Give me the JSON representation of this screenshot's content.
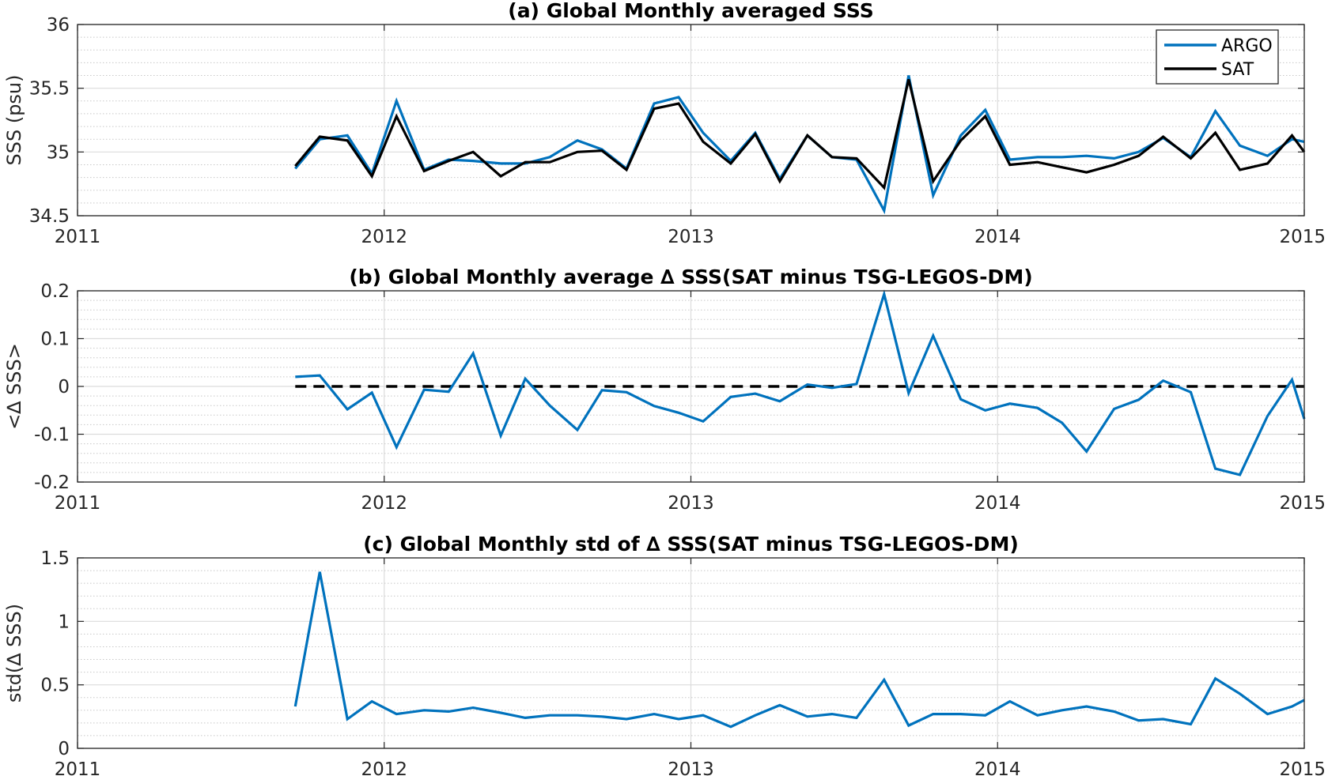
{
  "chart_data": [
    {
      "type": "line",
      "title": "(a) Global Monthly averaged SSS",
      "xlabel": "",
      "ylabel": "SSS (psu)",
      "xlim": [
        2011,
        2015
      ],
      "ylim": [
        34.5,
        36
      ],
      "xticks": [
        "2011",
        "2012",
        "2013",
        "2014",
        "2015"
      ],
      "yticks": [
        "34.5",
        "35",
        "35.5",
        "36"
      ],
      "grid": true,
      "legend": "top-right",
      "series": [
        {
          "name": "ARGO",
          "color": "#0072BD",
          "x": [
            2011.71,
            2011.79,
            2011.88,
            2011.96,
            2012.04,
            2012.13,
            2012.21,
            2012.29,
            2012.38,
            2012.46,
            2012.54,
            2012.63,
            2012.71,
            2012.79,
            2012.88,
            2012.96,
            2013.04,
            2013.13,
            2013.21,
            2013.29,
            2013.38,
            2013.46,
            2013.54,
            2013.63,
            2013.71,
            2013.79,
            2013.88,
            2013.96,
            2014.04,
            2014.13,
            2014.21,
            2014.29,
            2014.38,
            2014.46,
            2014.54,
            2014.63,
            2014.71,
            2014.79,
            2014.88,
            2014.96,
            2015.0
          ],
          "values": [
            34.87,
            35.1,
            35.13,
            34.83,
            35.4,
            34.86,
            34.94,
            34.93,
            34.91,
            34.91,
            34.96,
            35.09,
            35.02,
            34.87,
            35.38,
            35.43,
            35.15,
            34.93,
            35.15,
            34.79,
            35.13,
            34.96,
            34.94,
            34.54,
            35.6,
            34.66,
            35.13,
            35.33,
            34.94,
            34.96,
            34.96,
            34.97,
            34.95,
            35.0,
            35.11,
            34.96,
            35.32,
            35.05,
            34.97,
            35.1,
            35.08
          ]
        },
        {
          "name": "SAT",
          "color": "#000000",
          "x": [
            2011.71,
            2011.79,
            2011.88,
            2011.96,
            2012.04,
            2012.13,
            2012.21,
            2012.29,
            2012.38,
            2012.46,
            2012.54,
            2012.63,
            2012.71,
            2012.79,
            2012.88,
            2012.96,
            2013.04,
            2013.13,
            2013.21,
            2013.29,
            2013.38,
            2013.46,
            2013.54,
            2013.63,
            2013.71,
            2013.79,
            2013.88,
            2013.96,
            2014.04,
            2014.13,
            2014.21,
            2014.29,
            2014.38,
            2014.46,
            2014.54,
            2014.63,
            2014.71,
            2014.79,
            2014.88,
            2014.96,
            2015.0
          ],
          "values": [
            34.89,
            35.12,
            35.09,
            34.81,
            35.28,
            34.85,
            34.93,
            35.0,
            34.81,
            34.92,
            34.92,
            35.0,
            35.01,
            34.86,
            35.34,
            35.38,
            35.08,
            34.91,
            35.14,
            34.77,
            35.13,
            34.96,
            34.95,
            34.72,
            35.57,
            34.77,
            35.09,
            35.28,
            34.9,
            34.92,
            34.88,
            34.84,
            34.9,
            34.97,
            35.12,
            34.95,
            35.15,
            34.86,
            34.91,
            35.13,
            35.0
          ]
        }
      ]
    },
    {
      "type": "line",
      "title": "(b) Global Monthly average ∆ SSS(SAT minus TSG-LEGOS-DM)",
      "xlabel": "",
      "ylabel": "<∆ SSS>",
      "xlim": [
        2011,
        2015
      ],
      "ylim": [
        -0.2,
        0.2
      ],
      "xticks": [
        "2011",
        "2012",
        "2013",
        "2014",
        "2015"
      ],
      "yticks": [
        "-0.2",
        "-0.1",
        "0",
        "0.1",
        "0.2"
      ],
      "grid": true,
      "reference_line": {
        "y": 0,
        "style": "dashed",
        "color": "#000000"
      },
      "series": [
        {
          "color": "#0072BD",
          "x": [
            2011.71,
            2011.79,
            2011.88,
            2011.96,
            2012.04,
            2012.13,
            2012.21,
            2012.29,
            2012.38,
            2012.46,
            2012.54,
            2012.63,
            2012.71,
            2012.79,
            2012.88,
            2012.96,
            2013.04,
            2013.13,
            2013.21,
            2013.29,
            2013.38,
            2013.46,
            2013.54,
            2013.63,
            2013.71,
            2013.79,
            2013.88,
            2013.96,
            2014.04,
            2014.13,
            2014.21,
            2014.29,
            2014.38,
            2014.46,
            2014.54,
            2014.63,
            2014.71,
            2014.79,
            2014.88,
            2014.96,
            2015.0
          ],
          "values": [
            0.02,
            0.023,
            -0.048,
            -0.013,
            -0.127,
            -0.007,
            -0.011,
            0.069,
            -0.103,
            0.016,
            -0.04,
            -0.091,
            -0.008,
            -0.012,
            -0.041,
            -0.055,
            -0.073,
            -0.022,
            -0.015,
            -0.031,
            0.004,
            -0.003,
            0.005,
            0.193,
            -0.014,
            0.106,
            -0.027,
            -0.05,
            -0.036,
            -0.045,
            -0.076,
            -0.136,
            -0.047,
            -0.028,
            0.012,
            -0.012,
            -0.172,
            -0.185,
            -0.062,
            0.014,
            -0.068
          ]
        }
      ]
    },
    {
      "type": "line",
      "title": "(c) Global Monthly std of ∆ SSS(SAT minus TSG-LEGOS-DM)",
      "xlabel": "",
      "ylabel": "std(∆ SSS)",
      "xlim": [
        2011,
        2015
      ],
      "ylim": [
        0,
        1.5
      ],
      "xticks": [
        "2011",
        "2012",
        "2013",
        "2014",
        "2015"
      ],
      "yticks": [
        "0",
        "0.5",
        "1",
        "1.5"
      ],
      "grid": true,
      "series": [
        {
          "color": "#0072BD",
          "x": [
            2011.71,
            2011.79,
            2011.88,
            2011.96,
            2012.04,
            2012.13,
            2012.21,
            2012.29,
            2012.38,
            2012.46,
            2012.54,
            2012.63,
            2012.71,
            2012.79,
            2012.88,
            2012.96,
            2013.04,
            2013.13,
            2013.21,
            2013.29,
            2013.38,
            2013.46,
            2013.54,
            2013.63,
            2013.71,
            2013.79,
            2013.88,
            2013.96,
            2014.04,
            2014.13,
            2014.21,
            2014.29,
            2014.38,
            2014.46,
            2014.54,
            2014.63,
            2014.71,
            2014.79,
            2014.88,
            2014.96,
            2015.0
          ],
          "values": [
            0.33,
            1.39,
            0.23,
            0.37,
            0.27,
            0.3,
            0.29,
            0.32,
            0.28,
            0.24,
            0.26,
            0.26,
            0.25,
            0.23,
            0.27,
            0.23,
            0.26,
            0.17,
            0.26,
            0.34,
            0.25,
            0.27,
            0.24,
            0.54,
            0.18,
            0.27,
            0.27,
            0.26,
            0.37,
            0.26,
            0.3,
            0.33,
            0.29,
            0.22,
            0.23,
            0.19,
            0.55,
            0.43,
            0.27,
            0.33,
            0.38
          ]
        }
      ]
    }
  ]
}
